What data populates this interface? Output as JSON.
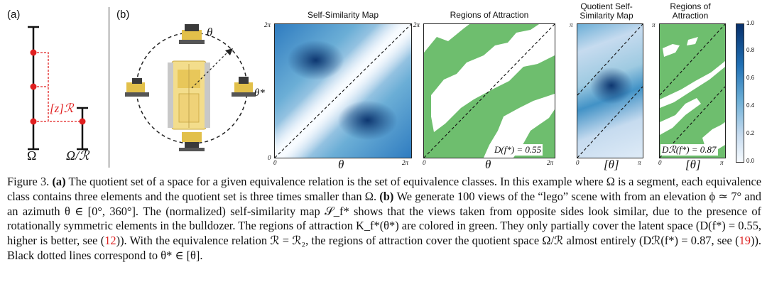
{
  "panel_a": {
    "label": "(a)",
    "relation_label": "[z]ℛ",
    "omega_label": "Ω",
    "quotient_label": "Ω/ℛ"
  },
  "panel_b": {
    "label": "(b)",
    "theta_label": "θ",
    "theta_star_label": "θ*"
  },
  "maps": {
    "self_similarity": {
      "title": "Self-Similarity Map",
      "x_label": "θ",
      "tick_min": "0",
      "tick_max": "2π",
      "tick_y_max": "2π"
    },
    "regions": {
      "title": "Regions of Attraction",
      "x_label": "θ",
      "tick_min": "0",
      "tick_max": "2π",
      "tick_y_max": "2π",
      "score": "D(f*) = 0.55"
    },
    "quotient_similarity": {
      "title": "Quotient Self-Similarity Map",
      "x_label": "[θ]",
      "tick_min": "0",
      "tick_max": "π",
      "tick_y_max": "π"
    },
    "quotient_regions": {
      "title": "Regions of Attraction",
      "x_label": "[θ]",
      "tick_min": "0",
      "tick_max": "π",
      "tick_y_max": "π",
      "score": "Dℛ(f*) = 0.87"
    }
  },
  "colorbar": {
    "ticks": [
      "1.0",
      "0.8",
      "0.6",
      "0.4",
      "0.2",
      "0.0"
    ],
    "color_high": "#08306b",
    "color_low": "#f7fbff"
  },
  "colors": {
    "green": "#6ebe6e",
    "red": "#e02020"
  },
  "caption": {
    "fig": "Figure 3.",
    "a_tag": "(a)",
    "a_text": "The quotient set of a space for a given equivalence relation is the set of equivalence classes. In this example where Ω is a segment, each equivalence class contains three elements and the quotient set is three times smaller than Ω.",
    "b_tag": "(b)",
    "b_text_1": "We generate 100 views of the “lego” scene with from an elevation ϕ ≃ 7° and an azimuth θ ∈ [0°, 360°]. The (normalized) self-similarity map 𝒮_f* shows that the views taken from opposite sides look similar, due to the presence of rotationally symmetric elements in the bulldozer. The regions of attraction K_f*(θ*) are colored in green. They only partially cover the latent space (D(f*) = 0.55, higher is better, see (",
    "ref1": "12",
    "b_text_2": ")). With the equivalence relation ℛ = ℛ₂, the regions of attraction cover the quotient space Ω/ℛ almost entirely (Dℛ(f*) = 0.87, see (",
    "ref2": "19",
    "b_text_3": ")). Black dotted lines correspond to θ* ∈ [θ]."
  }
}
